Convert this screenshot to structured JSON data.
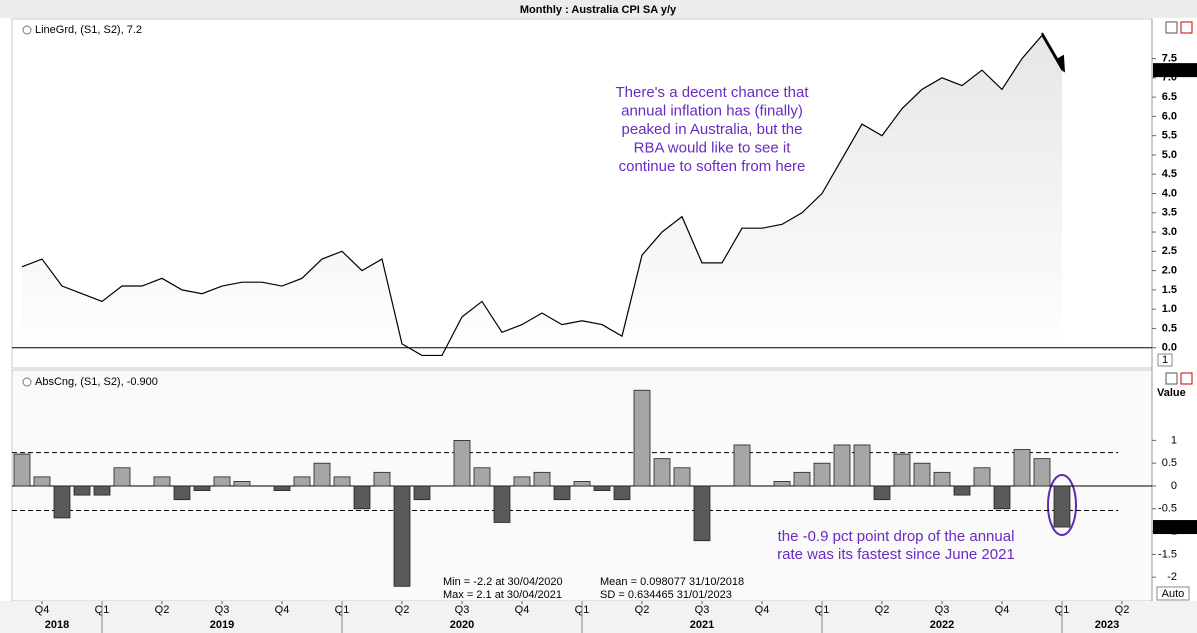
{
  "title": "Monthly : Australia CPI SA y/y",
  "years": [
    "2018",
    "2019",
    "2020",
    "2021",
    "2022",
    "2023"
  ],
  "chart_data": [
    {
      "type": "line",
      "legend": "LineGrd, (S1, S2), 7.2",
      "current_label": "7.2",
      "panel_button": "1",
      "color": "#000000",
      "categories": [
        null,
        "Q4",
        null,
        null,
        "Q1",
        null,
        null,
        "Q2",
        null,
        null,
        "Q3",
        null,
        null,
        "Q4",
        null,
        null,
        "Q1",
        null,
        null,
        "Q2",
        null,
        null,
        "Q3",
        null,
        null,
        "Q4",
        null,
        null,
        "Q1",
        null,
        null,
        "Q2",
        null,
        null,
        "Q3",
        null,
        null,
        "Q4",
        null,
        null,
        "Q1",
        null,
        null,
        "Q2",
        null,
        null,
        "Q3",
        null,
        null,
        "Q4",
        null,
        null,
        "Q1",
        null,
        null,
        "Q2",
        null
      ],
      "values": [
        2.1,
        2.3,
        1.6,
        1.4,
        1.2,
        1.6,
        1.6,
        1.8,
        1.5,
        1.4,
        1.6,
        1.7,
        1.7,
        1.6,
        1.8,
        2.3,
        2.5,
        2.0,
        2.3,
        0.1,
        -0.2,
        -0.2,
        0.8,
        1.2,
        0.4,
        0.6,
        0.9,
        0.6,
        0.7,
        0.6,
        0.3,
        2.4,
        3.0,
        3.4,
        2.2,
        2.2,
        3.1,
        3.1,
        3.2,
        3.5,
        4.0,
        4.9,
        5.8,
        5.5,
        6.2,
        6.7,
        7.0,
        6.8,
        7.2,
        6.7,
        7.5,
        8.1,
        7.2,
        null,
        null,
        null,
        null
      ],
      "ylim": [
        -0.5,
        8.5
      ],
      "yticks": [
        {
          "value": 0,
          "label": "0.0"
        },
        {
          "value": 0.5,
          "label": "0.5"
        },
        {
          "value": 1,
          "label": "1.0"
        },
        {
          "value": 1.5,
          "label": "1.5"
        },
        {
          "value": 2,
          "label": "2.0"
        },
        {
          "value": 2.5,
          "label": "2.5"
        },
        {
          "value": 3,
          "label": "3.0"
        },
        {
          "value": 3.5,
          "label": "3.5"
        },
        {
          "value": 4,
          "label": "4.0"
        },
        {
          "value": 4.5,
          "label": "4.5"
        },
        {
          "value": 5,
          "label": "5.0"
        },
        {
          "value": 5.5,
          "label": "5.5"
        },
        {
          "value": 6,
          "label": "6.0"
        },
        {
          "value": 6.5,
          "label": "6.5"
        },
        {
          "value": 7,
          "label": "7.0"
        },
        {
          "value": 7.5,
          "label": "7.5"
        }
      ],
      "annotation": [
        "There's a decent chance that",
        "annual inflation has (finally)",
        "peaked in Australia, but the",
        "RBA would like to see it",
        "continue to soften from here"
      ]
    },
    {
      "type": "bar",
      "legend": "AbsCng, (S1, S2), -0.900",
      "current_label": "-0.900",
      "y_label": "Value",
      "panel_button": "Auto",
      "positive_color": "#a6a6a6",
      "negative_color": "#595959",
      "categories": [
        null,
        "Q4",
        null,
        null,
        "Q1",
        null,
        null,
        "Q2",
        null,
        null,
        "Q3",
        null,
        null,
        "Q4",
        null,
        null,
        "Q1",
        null,
        null,
        "Q2",
        null,
        null,
        "Q3",
        null,
        null,
        "Q4",
        null,
        null,
        "Q1",
        null,
        null,
        "Q2",
        null,
        null,
        "Q3",
        null,
        null,
        "Q4",
        null,
        null,
        "Q1",
        null,
        null,
        "Q2",
        null,
        null,
        "Q3",
        null,
        null,
        "Q4",
        null,
        null,
        "Q1",
        null,
        null,
        "Q2",
        null
      ],
      "values": [
        0.7,
        0.2,
        -0.7,
        -0.2,
        -0.2,
        0.4,
        0,
        0.2,
        -0.3,
        -0.1,
        0.2,
        0.1,
        0,
        -0.1,
        0.2,
        0.5,
        0.2,
        -0.5,
        0.3,
        -2.2,
        -0.3,
        0,
        1.0,
        0.4,
        -0.8,
        0.2,
        0.3,
        -0.3,
        0.1,
        -0.1,
        -0.3,
        2.1,
        0.6,
        0.4,
        -1.2,
        0,
        0.9,
        0,
        0.1,
        0.3,
        0.5,
        0.9,
        0.9,
        -0.3,
        0.7,
        0.5,
        0.3,
        -0.2,
        0.4,
        -0.5,
        0.8,
        0.6,
        -0.9,
        null,
        null,
        null,
        null
      ],
      "ylim": [
        -2.5,
        2.5
      ],
      "yticks": [
        -2,
        -1.5,
        -1,
        -0.5,
        0,
        0.5,
        1
      ],
      "stats": [
        {
          "name": "Min  =",
          "value": -2.2,
          "date": "at 30/04/2020"
        },
        {
          "name": "Mean =",
          "value": 0.098077,
          "date": "31/10/2018"
        },
        {
          "name": "Max =",
          "value": 2.1,
          "date": "at 30/04/2021"
        },
        {
          "name": "SD     =",
          "value": 0.634465,
          "date": "31/01/2023"
        }
      ],
      "annotation": [
        "the -0.9 pct point drop of the annual",
        "rate was its fastest since June 2021"
      ]
    }
  ]
}
